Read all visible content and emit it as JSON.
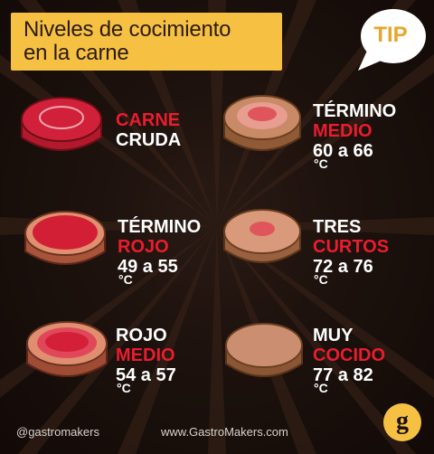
{
  "header": {
    "title_line1": "Niveles de cocimiento",
    "title_line2": "en la carne",
    "tip": "TIP"
  },
  "levels": [
    {
      "line1": "CARNE",
      "line2": "CRUDA",
      "temp": ""
    },
    {
      "line1": "TÉRMINO",
      "line2": "MEDIO",
      "temp": "60 a 66"
    },
    {
      "line1": "TÉRMINO",
      "line2": "ROJO",
      "temp": "49 a 55"
    },
    {
      "line1": "TRES",
      "line2": "CURTOS",
      "temp": "72 a 76"
    },
    {
      "line1": "ROJO",
      "line2": "MEDIO",
      "temp": "54 a 57"
    },
    {
      "line1": "MUY",
      "line2": "COCIDO",
      "temp": "77 a 82"
    }
  ],
  "degree_unit": "°C",
  "footer": {
    "handle": "@gastromakers",
    "website": "www.GastroMakers.com",
    "logo_letter": "g"
  },
  "colors": {
    "accent_red": "#ea1c2d",
    "title_yellow": "#f6c143",
    "background": "#1c110d"
  }
}
